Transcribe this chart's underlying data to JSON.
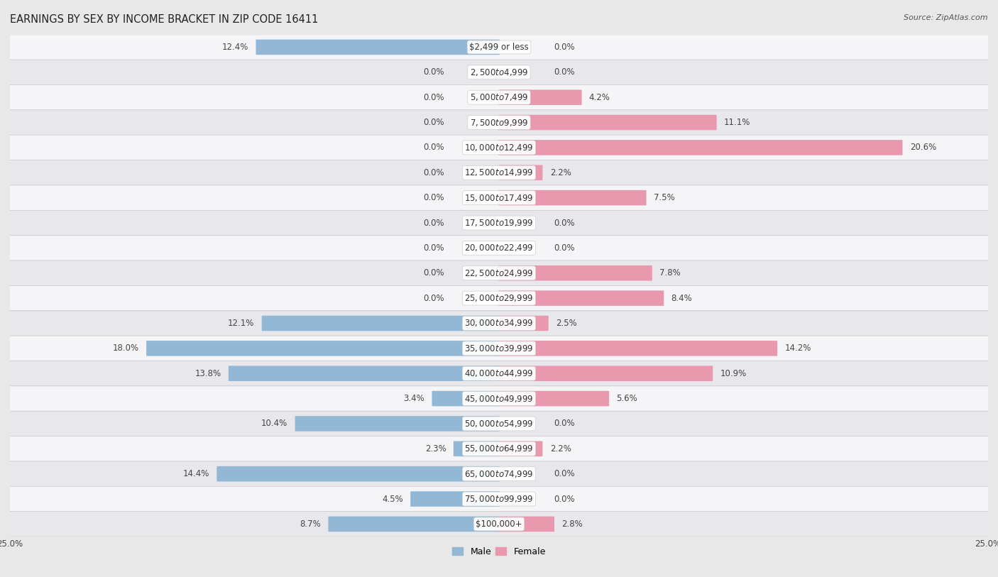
{
  "title": "EARNINGS BY SEX BY INCOME BRACKET IN ZIP CODE 16411",
  "source": "Source: ZipAtlas.com",
  "categories": [
    "$2,499 or less",
    "$2,500 to $4,999",
    "$5,000 to $7,499",
    "$7,500 to $9,999",
    "$10,000 to $12,499",
    "$12,500 to $14,999",
    "$15,000 to $17,499",
    "$17,500 to $19,999",
    "$20,000 to $22,499",
    "$22,500 to $24,999",
    "$25,000 to $29,999",
    "$30,000 to $34,999",
    "$35,000 to $39,999",
    "$40,000 to $44,999",
    "$45,000 to $49,999",
    "$50,000 to $54,999",
    "$55,000 to $64,999",
    "$65,000 to $74,999",
    "$75,000 to $99,999",
    "$100,000+"
  ],
  "male_values": [
    12.4,
    0.0,
    0.0,
    0.0,
    0.0,
    0.0,
    0.0,
    0.0,
    0.0,
    0.0,
    0.0,
    12.1,
    18.0,
    13.8,
    3.4,
    10.4,
    2.3,
    14.4,
    4.5,
    8.7
  ],
  "female_values": [
    0.0,
    0.0,
    4.2,
    11.1,
    20.6,
    2.2,
    7.5,
    0.0,
    0.0,
    7.8,
    8.4,
    2.5,
    14.2,
    10.9,
    5.6,
    0.0,
    2.2,
    0.0,
    0.0,
    2.8
  ],
  "male_color": "#93b8d5",
  "female_color": "#e899ae",
  "axis_max": 25.0,
  "bg_color": "#e8e8e8",
  "row_white": "#f5f5f8",
  "row_gray": "#e8e8ec",
  "title_fontsize": 10.5,
  "label_fontsize": 8.5,
  "category_fontsize": 8.5,
  "value_label_color": "#444444"
}
